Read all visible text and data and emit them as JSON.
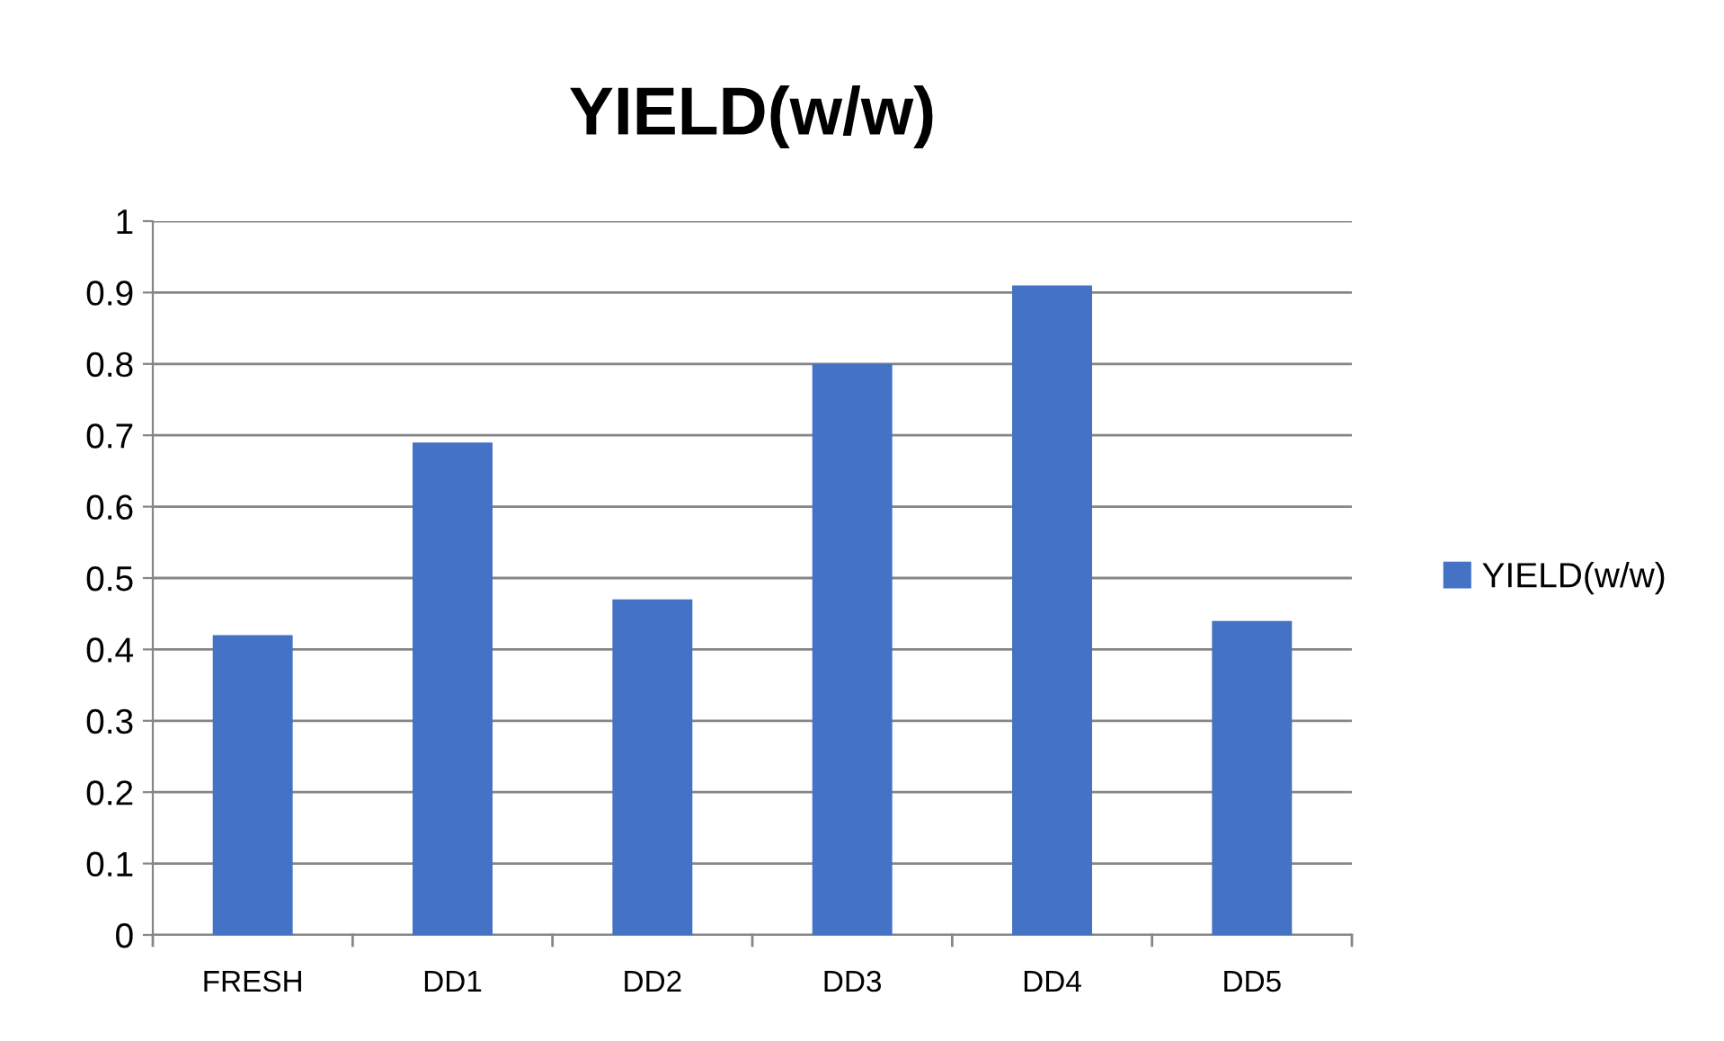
{
  "chart_data": {
    "type": "bar",
    "title": "YIELD(w/w)",
    "categories": [
      "FRESH",
      "DD1",
      "DD2",
      "DD3",
      "DD4",
      "DD5"
    ],
    "series": [
      {
        "name": "YIELD(w/w)",
        "color": "#4472c4",
        "values": [
          0.42,
          0.69,
          0.47,
          0.8,
          0.91,
          0.44
        ]
      }
    ],
    "ylim": [
      0,
      1
    ],
    "yticks": [
      0,
      0.1,
      0.2,
      0.3,
      0.4,
      0.5,
      0.6,
      0.7,
      0.8,
      0.9,
      1
    ],
    "grid": "y",
    "legend": "right"
  }
}
